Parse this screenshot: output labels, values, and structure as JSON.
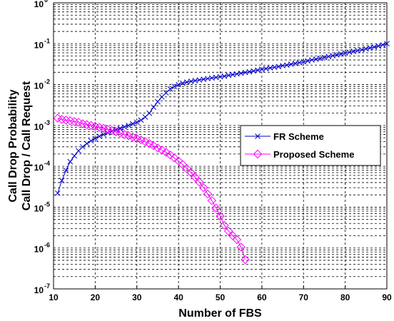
{
  "chart_data": {
    "type": "line",
    "xlabel": "Number of FBS",
    "ylabel_lines": [
      "Call Drop Probability",
      "Call Drop / Call Request"
    ],
    "xlim": [
      10,
      90
    ],
    "ylim_log10": [
      -7,
      0
    ],
    "y_scale": "log",
    "grid": true,
    "legend_placement": "center-right",
    "x_ticks": [
      10,
      20,
      30,
      40,
      50,
      60,
      70,
      80,
      90
    ],
    "y_tick_exponents": [
      -7,
      -6,
      -5,
      -4,
      -3,
      -2,
      -1,
      0
    ],
    "series": [
      {
        "name": "FR Scheme",
        "color": "#0000cc",
        "marker": "x",
        "points": [
          [
            11,
            2.2e-05
          ],
          [
            12,
            4.5e-05
          ],
          [
            13,
            8e-05
          ],
          [
            14,
            0.00013
          ],
          [
            15,
            0.00018
          ],
          [
            16,
            0.00024
          ],
          [
            17,
            0.0003
          ],
          [
            18,
            0.00036
          ],
          [
            19,
            0.00042
          ],
          [
            20,
            0.00048
          ],
          [
            21,
            0.00054
          ],
          [
            22,
            0.0006
          ],
          [
            23,
            0.00066
          ],
          [
            24,
            0.00072
          ],
          [
            25,
            0.00078
          ],
          [
            26,
            0.00085
          ],
          [
            27,
            0.00092
          ],
          [
            28,
            0.001
          ],
          [
            29,
            0.0011
          ],
          [
            30,
            0.0012
          ],
          [
            31,
            0.00135
          ],
          [
            32,
            0.0016
          ],
          [
            33,
            0.002
          ],
          [
            34,
            0.0028
          ],
          [
            35,
            0.0038
          ],
          [
            36,
            0.005
          ],
          [
            37,
            0.0063
          ],
          [
            38,
            0.0078
          ],
          [
            39,
            0.009
          ],
          [
            40,
            0.01
          ],
          [
            41,
            0.0108
          ],
          [
            42,
            0.0115
          ],
          [
            43,
            0.012
          ],
          [
            44,
            0.0125
          ],
          [
            45,
            0.013
          ],
          [
            46,
            0.0135
          ],
          [
            47,
            0.014
          ],
          [
            48,
            0.0145
          ],
          [
            49,
            0.015
          ],
          [
            50,
            0.0155
          ],
          [
            51,
            0.016
          ],
          [
            52,
            0.0168
          ],
          [
            53,
            0.0175
          ],
          [
            54,
            0.0182
          ],
          [
            55,
            0.019
          ],
          [
            56,
            0.0198
          ],
          [
            57,
            0.0206
          ],
          [
            58,
            0.0215
          ],
          [
            59,
            0.0225
          ],
          [
            60,
            0.0235
          ],
          [
            61,
            0.0245
          ],
          [
            62,
            0.0255
          ],
          [
            63,
            0.0265
          ],
          [
            64,
            0.0275
          ],
          [
            65,
            0.029
          ],
          [
            66,
            0.03
          ],
          [
            67,
            0.0315
          ],
          [
            68,
            0.033
          ],
          [
            69,
            0.0345
          ],
          [
            70,
            0.036
          ],
          [
            71,
            0.038
          ],
          [
            72,
            0.04
          ],
          [
            73,
            0.042
          ],
          [
            74,
            0.044
          ],
          [
            75,
            0.046
          ],
          [
            76,
            0.0485
          ],
          [
            77,
            0.051
          ],
          [
            78,
            0.0535
          ],
          [
            79,
            0.056
          ],
          [
            80,
            0.059
          ],
          [
            81,
            0.062
          ],
          [
            82,
            0.065
          ],
          [
            83,
            0.068
          ],
          [
            84,
            0.071
          ],
          [
            85,
            0.075
          ],
          [
            86,
            0.079
          ],
          [
            87,
            0.083
          ],
          [
            88,
            0.088
          ],
          [
            89,
            0.094
          ],
          [
            90,
            0.1
          ]
        ]
      },
      {
        "name": "Proposed Scheme",
        "color": "#ff00ff",
        "marker": "diamond",
        "points": [
          [
            11,
            0.0015
          ],
          [
            12,
            0.0014
          ],
          [
            13,
            0.00135
          ],
          [
            14,
            0.0013
          ],
          [
            15,
            0.00125
          ],
          [
            16,
            0.0012
          ],
          [
            17,
            0.0011
          ],
          [
            18,
            0.00105
          ],
          [
            19,
            0.001
          ],
          [
            20,
            0.00095
          ],
          [
            21,
            0.0009
          ],
          [
            22,
            0.00085
          ],
          [
            23,
            0.0008
          ],
          [
            24,
            0.00075
          ],
          [
            25,
            0.0007
          ],
          [
            26,
            0.00065
          ],
          [
            27,
            0.0006
          ],
          [
            28,
            0.00056
          ],
          [
            29,
            0.00052
          ],
          [
            30,
            0.00048
          ],
          [
            31,
            0.00044
          ],
          [
            32,
            0.0004
          ],
          [
            33,
            0.00036
          ],
          [
            34,
            0.00032
          ],
          [
            35,
            0.00028
          ],
          [
            36,
            0.00025
          ],
          [
            37,
            0.00022
          ],
          [
            38,
            0.00019
          ],
          [
            39,
            0.00016
          ],
          [
            40,
            0.000135
          ],
          [
            41,
            0.00011
          ],
          [
            42,
            8.8e-05
          ],
          [
            43,
            7e-05
          ],
          [
            44,
            5.4e-05
          ],
          [
            45,
            4.1e-05
          ],
          [
            46,
            3e-05
          ],
          [
            47,
            2.1e-05
          ],
          [
            48,
            1.45e-05
          ],
          [
            49,
            9.5e-06
          ],
          [
            50,
            6e-06
          ],
          [
            51,
            3.6e-06
          ],
          [
            52,
            2.6e-06
          ],
          [
            53,
            2e-06
          ],
          [
            54,
            1.6e-06
          ],
          [
            55,
            1.05e-06
          ],
          [
            56,
            5.2e-07
          ]
        ]
      }
    ]
  }
}
